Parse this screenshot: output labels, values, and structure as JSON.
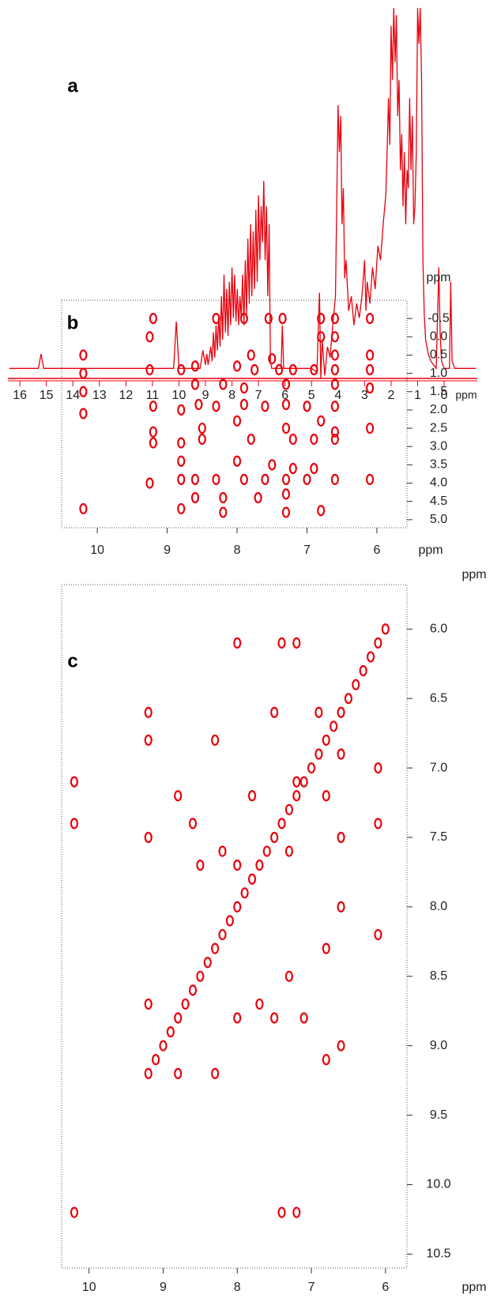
{
  "chart_data": [
    {
      "type": "line",
      "label": "a",
      "xlabel": "ppm",
      "color": "#e8000c",
      "x_reversed": true,
      "xlim": [
        -1.25,
        16.45
      ],
      "ylim": [
        -3,
        100
      ],
      "xticks": [
        16,
        15,
        14,
        13,
        12,
        11,
        10,
        9,
        8,
        7,
        6,
        5,
        4,
        3,
        2,
        1,
        0
      ],
      "x": [
        16.4,
        15.3,
        15.2,
        15.1,
        10.2,
        10.1,
        10.0,
        9.2,
        9.1,
        9.0,
        8.95,
        8.9,
        8.8,
        8.75,
        8.7,
        8.65,
        8.6,
        8.55,
        8.5,
        8.45,
        8.4,
        8.35,
        8.3,
        8.25,
        8.2,
        8.15,
        8.1,
        8.05,
        8.0,
        7.95,
        7.9,
        7.85,
        7.8,
        7.75,
        7.7,
        7.65,
        7.6,
        7.55,
        7.5,
        7.45,
        7.4,
        7.35,
        7.3,
        7.25,
        7.2,
        7.15,
        7.1,
        7.05,
        7.0,
        6.95,
        6.9,
        6.85,
        6.8,
        6.75,
        6.7,
        6.65,
        6.6,
        6.55,
        6.5,
        6.15,
        6.1,
        6.05,
        5.0,
        4.8,
        4.7,
        4.65,
        4.6,
        4.5,
        4.4,
        4.3,
        4.2,
        4.1,
        4.05,
        4.0,
        3.95,
        3.9,
        3.85,
        3.8,
        3.75,
        3.7,
        3.6,
        3.5,
        3.4,
        3.3,
        3.2,
        3.1,
        3.0,
        2.95,
        2.9,
        2.8,
        2.7,
        2.6,
        2.5,
        2.4,
        2.3,
        2.2,
        2.15,
        2.1,
        2.05,
        2.0,
        1.95,
        1.9,
        1.85,
        1.8,
        1.75,
        1.7,
        1.65,
        1.6,
        1.55,
        1.5,
        1.45,
        1.4,
        1.35,
        1.3,
        1.25,
        1.2,
        1.15,
        1.1,
        1.05,
        1.0,
        0.95,
        0.9,
        0.85,
        0.8,
        0.75,
        0.7,
        0.6,
        0.5,
        0.3,
        0.2,
        0.15,
        0.1,
        0.0,
        -0.2,
        -0.25,
        -0.3,
        -0.4,
        -1.2
      ],
      "values": [
        0,
        0,
        4,
        0,
        0,
        13,
        0,
        0,
        5,
        1,
        4,
        1,
        6,
        2,
        10,
        3,
        12,
        5,
        15,
        6,
        20,
        8,
        26,
        10,
        22,
        9,
        24,
        12,
        28,
        14,
        26,
        13,
        22,
        12,
        20,
        14,
        26,
        12,
        30,
        15,
        36,
        18,
        40,
        20,
        38,
        22,
        44,
        24,
        48,
        30,
        45,
        35,
        52,
        30,
        45,
        20,
        40,
        2,
        0,
        0,
        12,
        0,
        0,
        -1,
        21,
        -3,
        8,
        -2,
        6,
        3,
        12,
        20,
        45,
        73,
        60,
        70,
        40,
        50,
        25,
        30,
        16,
        20,
        12,
        18,
        14,
        20,
        30,
        16,
        24,
        18,
        28,
        22,
        34,
        30,
        40,
        48,
        60,
        75,
        62,
        95,
        80,
        100,
        85,
        98,
        70,
        80,
        55,
        65,
        45,
        60,
        40,
        55,
        50,
        75,
        55,
        70,
        40,
        45,
        60,
        100,
        90,
        100,
        80,
        30,
        15,
        8,
        4,
        2,
        0,
        28,
        10,
        2,
        0,
        0,
        24,
        2,
        0,
        0
      ]
    },
    {
      "type": "scatter",
      "label": "b",
      "xlabel": "ppm",
      "ylabel": "ppm",
      "color": "#e8000c",
      "x_reversed": true,
      "y_reversed": true,
      "xlim": [
        5.57,
        10.51
      ],
      "ylim": [
        -1.0,
        5.22
      ],
      "xticks": [
        10,
        9,
        8,
        7,
        6
      ],
      "yticks": [
        -0.5,
        {
          "value": 0,
          "label": "0.0"
        },
        0.5,
        {
          "value": 1,
          "label": "1.0"
        },
        1.5,
        {
          "value": 2,
          "label": "2.0"
        },
        2.5,
        {
          "value": 3,
          "label": "3.0"
        },
        3.5,
        {
          "value": 4,
          "label": "4.0"
        },
        4.5,
        {
          "value": 5,
          "label": "5.0"
        }
      ],
      "x": [
        9.2,
        8.3,
        7.9,
        7.55,
        7.35,
        6.8,
        6.6,
        6.1,
        9.25,
        6.8,
        6.6,
        10.2,
        7.8,
        7.5,
        6.1,
        6.6,
        10.2,
        9.25,
        8.8,
        8.6,
        8.0,
        7.75,
        7.4,
        7.2,
        6.9,
        6.6,
        6.1,
        10.2,
        8.6,
        8.2,
        7.9,
        7.3,
        6.6,
        6.1,
        10.2,
        9.2,
        8.8,
        8.55,
        8.3,
        7.9,
        7.6,
        7.3,
        7.0,
        6.6,
        9.2,
        8.5,
        8.0,
        7.3,
        6.8,
        6.6,
        6.1,
        9.2,
        8.8,
        8.5,
        7.8,
        7.2,
        6.9,
        6.6,
        8.8,
        8.0,
        7.5,
        7.2,
        6.9,
        9.25,
        8.8,
        8.6,
        8.3,
        7.9,
        7.6,
        7.3,
        7.0,
        6.6,
        6.1,
        8.6,
        8.2,
        7.7,
        7.3,
        10.2,
        8.8,
        8.2,
        7.3,
        6.8
      ],
      "y": [
        -0.5,
        -0.5,
        -0.5,
        -0.5,
        -0.5,
        -0.5,
        -0.5,
        -0.5,
        0.0,
        0.0,
        0.0,
        0.5,
        0.5,
        0.6,
        0.5,
        0.5,
        1.0,
        0.9,
        0.9,
        0.8,
        0.8,
        0.9,
        0.9,
        0.9,
        0.9,
        0.9,
        0.9,
        1.5,
        1.3,
        1.3,
        1.4,
        1.3,
        1.3,
        1.4,
        2.1,
        1.9,
        2.0,
        1.85,
        1.9,
        1.85,
        1.9,
        1.85,
        1.9,
        1.9,
        2.6,
        2.5,
        2.3,
        2.5,
        2.3,
        2.6,
        2.5,
        2.9,
        2.9,
        2.8,
        2.8,
        2.8,
        2.8,
        2.8,
        3.4,
        3.4,
        3.5,
        3.6,
        3.6,
        4.0,
        3.9,
        3.9,
        3.9,
        3.9,
        3.9,
        3.9,
        3.9,
        3.9,
        3.9,
        4.4,
        4.4,
        4.4,
        4.3,
        4.7,
        4.7,
        4.8,
        4.8,
        4.75
      ]
    },
    {
      "type": "scatter",
      "label": "c",
      "xlabel": "ppm",
      "ylabel": "ppm",
      "color": "#e8000c",
      "x_reversed": true,
      "y_reversed": true,
      "xlim": [
        5.71,
        10.37
      ],
      "ylim": [
        5.68,
        10.6
      ],
      "xticks": [
        10,
        9,
        8,
        7,
        6
      ],
      "yticks": [
        {
          "value": 6,
          "label": "6.0"
        },
        6.5,
        {
          "value": 7,
          "label": "7.0"
        },
        7.5,
        {
          "value": 8,
          "label": "8.0"
        },
        8.5,
        {
          "value": 9,
          "label": "9.0"
        },
        9.5,
        {
          "value": 10,
          "label": "10.0"
        },
        10.5
      ],
      "x": [
        10.2,
        9.2,
        9.1,
        9.0,
        8.9,
        8.8,
        8.7,
        8.6,
        8.5,
        8.4,
        8.3,
        8.2,
        8.1,
        8.0,
        7.9,
        7.8,
        7.7,
        7.6,
        7.5,
        7.4,
        7.3,
        7.2,
        7.1,
        7.0,
        6.9,
        6.8,
        6.7,
        6.6,
        6.5,
        6.4,
        6.3,
        6.2,
        6.1,
        6.0,
        10.2,
        10.2,
        9.2,
        9.2,
        9.2,
        9.2,
        8.8,
        8.6,
        8.5,
        8.3,
        8.2,
        8.0,
        8.0,
        7.8,
        7.5,
        7.4,
        7.3,
        7.2,
        7.2,
        6.9,
        6.8,
        6.6,
        6.6,
        6.6,
        6.1,
        6.1,
        7.4,
        7.2,
        8.8,
        7.7,
        7.1,
        6.8,
        6.6,
        6.1,
        8.3,
        7.5,
        8.0,
        6.8,
        7.3
      ],
      "y": [
        10.2,
        9.2,
        9.1,
        9.0,
        8.9,
        8.8,
        8.7,
        8.6,
        8.5,
        8.4,
        8.3,
        8.2,
        8.1,
        8.0,
        7.9,
        7.8,
        7.7,
        7.6,
        7.5,
        7.4,
        7.3,
        7.2,
        7.1,
        7.0,
        6.9,
        6.8,
        6.7,
        6.6,
        6.5,
        6.4,
        6.3,
        6.2,
        6.1,
        6.0,
        7.1,
        7.4,
        6.6,
        6.8,
        7.5,
        8.7,
        7.2,
        7.4,
        7.7,
        6.8,
        7.6,
        6.1,
        7.7,
        7.2,
        6.6,
        6.1,
        7.6,
        6.1,
        7.1,
        6.6,
        7.2,
        6.9,
        7.5,
        8.0,
        7.0,
        7.4,
        10.2,
        10.2,
        9.2,
        8.7,
        8.8,
        9.1,
        9.0,
        8.2,
        9.2,
        8.8,
        8.8,
        8.3,
        8.5
      ]
    }
  ]
}
